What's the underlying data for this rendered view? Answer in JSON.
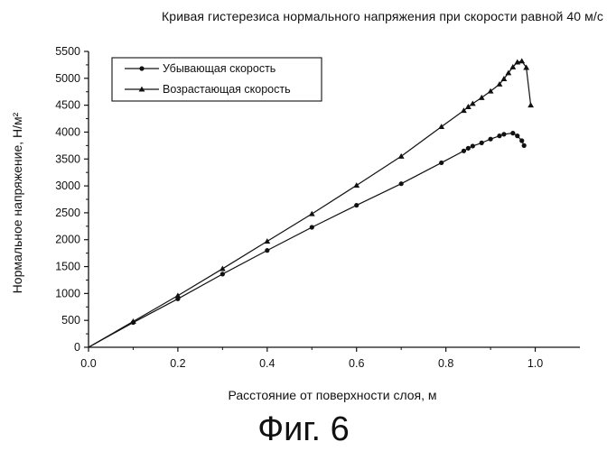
{
  "figure": {
    "caption": "Фиг. 6"
  },
  "chart_data": {
    "type": "line",
    "title": "Кривая гистерезиса нормального напряжения при скорости равной 40 м/с",
    "xlabel": "Расстояние от поверхности слоя, м",
    "ylabel": "Нормальное напряжение, Н/м²",
    "xlim": [
      0.0,
      1.1
    ],
    "ylim": [
      0,
      5500
    ],
    "xticks": [
      0.0,
      0.2,
      0.4,
      0.6,
      0.8,
      1.0
    ],
    "xtick_labels": [
      "0.0",
      "0.2",
      "0.4",
      "0.6",
      "0.8",
      "1.0"
    ],
    "yticks": [
      0,
      500,
      1000,
      1500,
      2000,
      2500,
      3000,
      3500,
      4000,
      4500,
      5000,
      5500
    ],
    "ytick_labels": [
      "0",
      "500",
      "1000",
      "1500",
      "2000",
      "2500",
      "3000",
      "3500",
      "4000",
      "4500",
      "5000",
      "5500"
    ],
    "grid": false,
    "legend_position": "top-left",
    "series": [
      {
        "name": "Убывающая скорость",
        "marker": "circle",
        "color": "#111111",
        "x": [
          0.0,
          0.1,
          0.2,
          0.3,
          0.4,
          0.5,
          0.6,
          0.7,
          0.79,
          0.84,
          0.85,
          0.86,
          0.88,
          0.9,
          0.92,
          0.93,
          0.95,
          0.96,
          0.97,
          0.975
        ],
        "y": [
          0,
          460,
          900,
          1360,
          1800,
          2230,
          2640,
          3040,
          3430,
          3650,
          3700,
          3740,
          3800,
          3870,
          3930,
          3960,
          3980,
          3930,
          3840,
          3750
        ]
      },
      {
        "name": "Возрастающая скорость",
        "marker": "triangle",
        "color": "#111111",
        "x": [
          0.0,
          0.1,
          0.2,
          0.3,
          0.4,
          0.5,
          0.6,
          0.7,
          0.79,
          0.84,
          0.85,
          0.86,
          0.88,
          0.9,
          0.92,
          0.93,
          0.94,
          0.95,
          0.96,
          0.97,
          0.98,
          0.99
        ],
        "y": [
          0,
          480,
          960,
          1460,
          1970,
          2480,
          3010,
          3550,
          4100,
          4400,
          4470,
          4530,
          4640,
          4760,
          4890,
          4990,
          5100,
          5210,
          5300,
          5320,
          5200,
          4500
        ]
      }
    ]
  }
}
